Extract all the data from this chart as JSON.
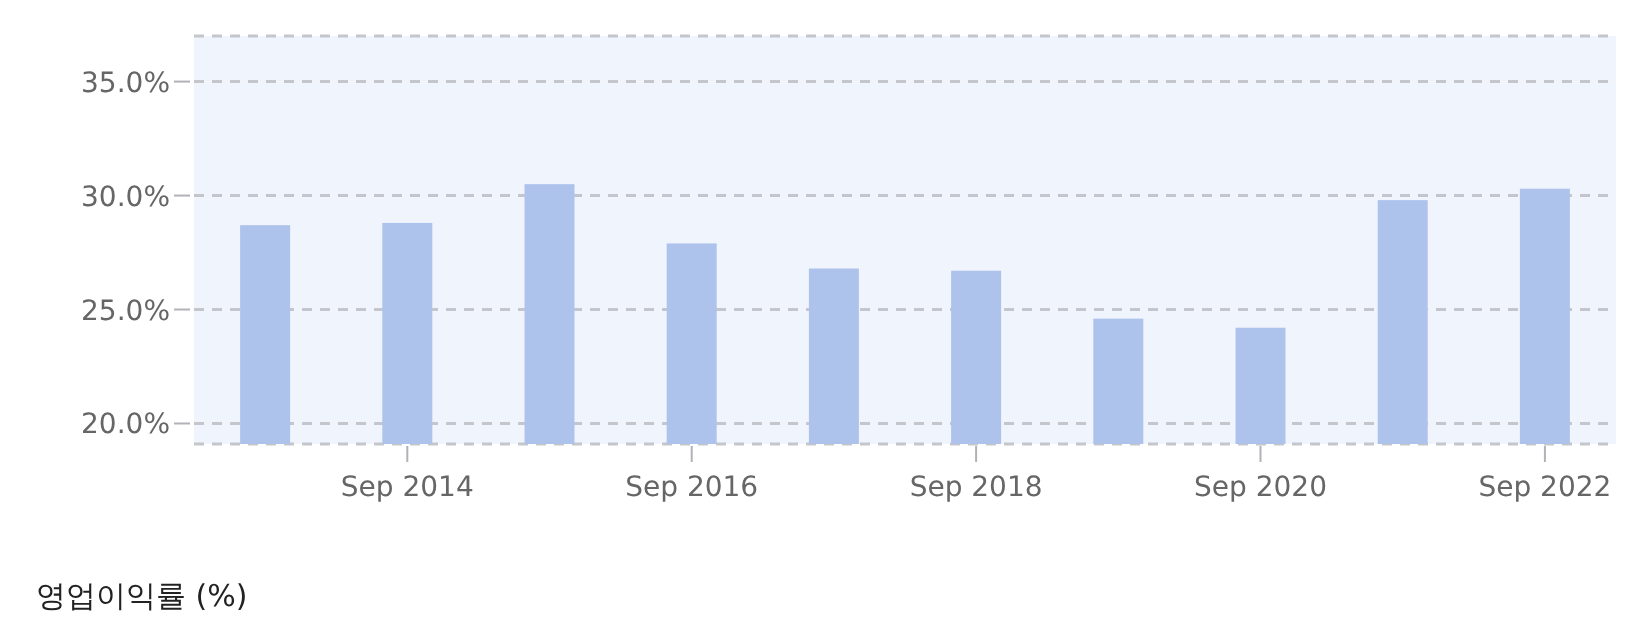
{
  "chart_data": {
    "type": "bar",
    "categories": [
      null,
      "Sep 2014",
      null,
      "Sep 2016",
      null,
      "Sep 2018",
      null,
      "Sep 2020",
      null,
      "Sep 2022"
    ],
    "values": [
      28.7,
      28.8,
      30.5,
      27.9,
      26.8,
      26.7,
      24.6,
      24.2,
      29.8,
      30.3
    ],
    "color": "#aec3eb",
    "ylim": [
      19.1,
      37.0
    ],
    "yticks": [
      {
        "value": 20,
        "label": "20.0%"
      },
      {
        "value": 25,
        "label": "25.0%"
      },
      {
        "value": 30,
        "label": "30.0%"
      },
      {
        "value": 35,
        "label": "35.0%"
      }
    ],
    "grid": "y",
    "annotations": [
      "영업이익률 (%)"
    ]
  }
}
